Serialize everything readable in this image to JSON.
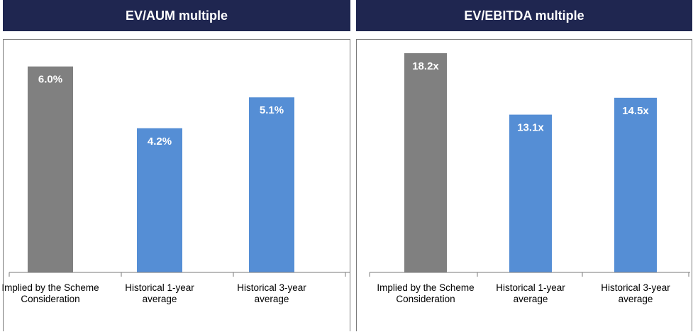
{
  "chart_data": [
    {
      "type": "bar",
      "title": "EV/AUM multiple",
      "categories": [
        "Implied by the Scheme Consideration",
        "Historical 1-year average",
        "Historical 3-year average"
      ],
      "values": [
        6.0,
        4.2,
        5.1
      ],
      "value_labels": [
        "6.0%",
        "4.2%",
        "5.1%"
      ],
      "bar_colors": [
        "#808080",
        "#558ed5",
        "#558ed5"
      ],
      "ylim": [
        0,
        6.2
      ],
      "grid": false,
      "xlabel": "",
      "ylabel": ""
    },
    {
      "type": "bar",
      "title": "EV/EBITDA multiple",
      "categories": [
        "Implied by the Scheme Consideration",
        "Historical 1-year average",
        "Historical 3-year average"
      ],
      "values": [
        18.2,
        13.1,
        14.5
      ],
      "value_labels": [
        "18.2x",
        "13.1x",
        "14.5x"
      ],
      "bar_colors": [
        "#808080",
        "#558ed5",
        "#558ed5"
      ],
      "ylim": [
        0,
        18.2
      ],
      "grid": false,
      "xlabel": "",
      "ylabel": ""
    }
  ],
  "colors": {
    "header_bg": "#1f2650",
    "implied_bar": "#808080",
    "historical_bar": "#558ed5"
  }
}
